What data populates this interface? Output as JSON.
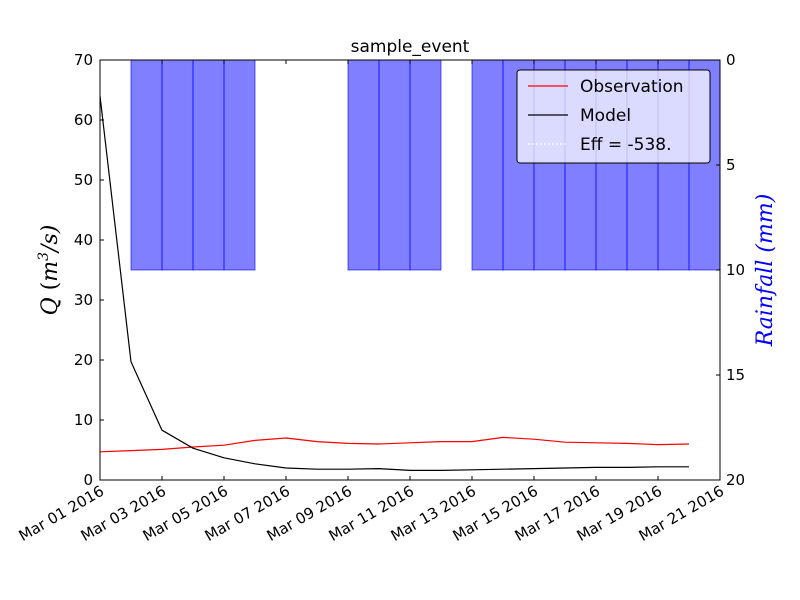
{
  "chart_data": {
    "type": "line",
    "title": "sample_event",
    "x_type": "date",
    "xlim": [
      "2016-03-01",
      "2016-03-21"
    ],
    "x_tick_labels": [
      "Mar 01 2016",
      "Mar 03 2016",
      "Mar 05 2016",
      "Mar 07 2016",
      "Mar 09 2016",
      "Mar 11 2016",
      "Mar 13 2016",
      "Mar 15 2016",
      "Mar 17 2016",
      "Mar 19 2016",
      "Mar 21 2016"
    ],
    "y_left": {
      "label": "Q (m³/s)",
      "label_base": "Q",
      "label_unit": "m",
      "label_exp": "3",
      "label_tail": "/s)",
      "ylim": [
        0,
        70
      ],
      "ticks": [
        "0",
        "10",
        "20",
        "30",
        "40",
        "50",
        "60",
        "70"
      ],
      "color": "#000000"
    },
    "y_right": {
      "label": "Rainfall (mm)",
      "ylim": [
        0,
        20
      ],
      "inverted": true,
      "ticks": [
        "0",
        "5",
        "10",
        "15",
        "20"
      ],
      "color": "#0000ff"
    },
    "grid": false,
    "legend": {
      "placement": "top-right",
      "entries": [
        {
          "name": "Observation",
          "color": "#ff0000"
        },
        {
          "name": "Model",
          "color": "#000000"
        },
        {
          "name": "Eff = -538.",
          "color": "#ffffff"
        }
      ]
    },
    "series": [
      {
        "name": "Observation",
        "color": "#ff0000",
        "axis": "left",
        "x": [
          "2016-03-01",
          "2016-03-02",
          "2016-03-03",
          "2016-03-04",
          "2016-03-05",
          "2016-03-06",
          "2016-03-07",
          "2016-03-08",
          "2016-03-09",
          "2016-03-10",
          "2016-03-11",
          "2016-03-12",
          "2016-03-13",
          "2016-03-14",
          "2016-03-15",
          "2016-03-16",
          "2016-03-17",
          "2016-03-18",
          "2016-03-19",
          "2016-03-20",
          "2016-03-21"
        ],
        "y": [
          4.7,
          4.9,
          5.1,
          5.5,
          5.8,
          6.6,
          7.0,
          6.4,
          6.1,
          6.0,
          6.2,
          6.4,
          6.4,
          7.1,
          6.8,
          6.3,
          6.2,
          6.1,
          5.9,
          6.0,
          null
        ]
      },
      {
        "name": "Model",
        "color": "#000000",
        "axis": "left",
        "x": [
          "2016-03-01",
          "2016-03-02",
          "2016-03-03",
          "2016-03-04",
          "2016-03-05",
          "2016-03-06",
          "2016-03-07",
          "2016-03-08",
          "2016-03-09",
          "2016-03-10",
          "2016-03-11",
          "2016-03-12",
          "2016-03-13",
          "2016-03-14",
          "2016-03-15",
          "2016-03-16",
          "2016-03-17",
          "2016-03-18",
          "2016-03-19",
          "2016-03-20",
          "2016-03-21"
        ],
        "y": [
          64.0,
          19.7,
          8.3,
          5.3,
          3.7,
          2.7,
          2.0,
          1.8,
          1.8,
          1.9,
          1.6,
          1.6,
          1.7,
          1.8,
          1.9,
          2.0,
          2.1,
          2.1,
          2.2,
          2.2,
          null
        ]
      }
    ],
    "rainfall": {
      "name": "Rainfall",
      "color": "#0000ff",
      "axis": "right",
      "bar_dates": [
        "2016-03-02",
        "2016-03-03",
        "2016-03-04",
        "2016-03-05",
        "2016-03-09",
        "2016-03-10",
        "2016-03-11",
        "2016-03-13",
        "2016-03-14",
        "2016-03-15",
        "2016-03-16",
        "2016-03-17",
        "2016-03-18",
        "2016-03-19",
        "2016-03-20"
      ],
      "values_mm": [
        10,
        10,
        10,
        10,
        10,
        10,
        10,
        10,
        10,
        10,
        10,
        10,
        10,
        10,
        10
      ]
    }
  }
}
